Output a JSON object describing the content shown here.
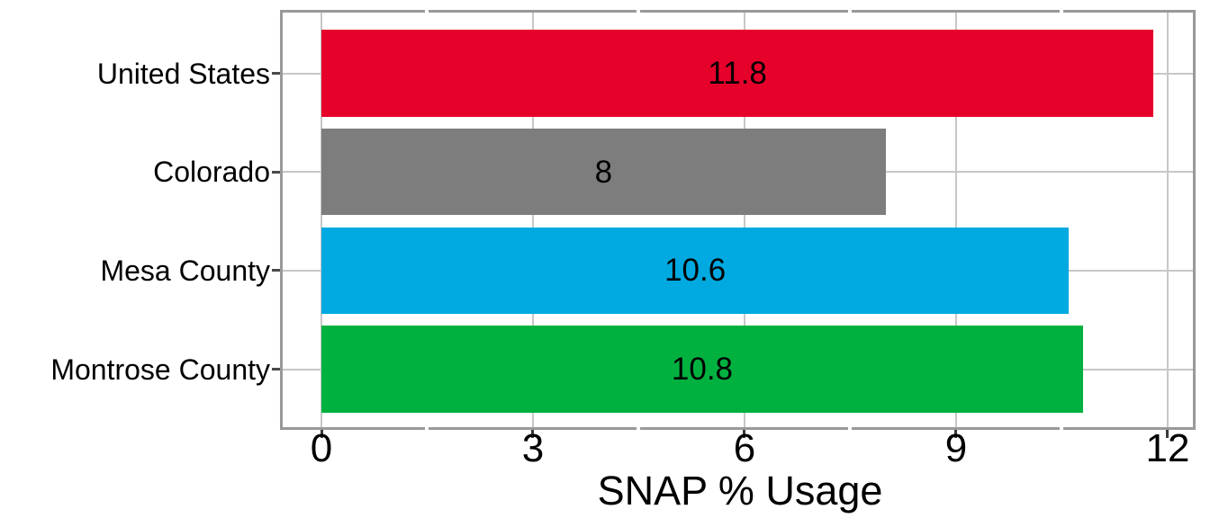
{
  "chart_data": {
    "type": "bar",
    "orientation": "horizontal",
    "title": "",
    "xlabel": "SNAP % Usage",
    "ylabel": "",
    "categories": [
      "United States",
      "Colorado",
      "Mesa County",
      "Montrose County"
    ],
    "values": [
      11.8,
      8,
      10.6,
      10.8
    ],
    "value_labels": [
      "11.8",
      "8",
      "10.6",
      "10.8"
    ],
    "bar_colors": [
      "#e6012b",
      "#7d7d7d",
      "#00a9e0",
      "#00b140"
    ],
    "x_major_ticks": [
      0,
      3,
      6,
      9,
      12
    ],
    "x_tick_labels": [
      "0",
      "3",
      "6",
      "9",
      "12"
    ],
    "x_minor_ticks": [
      1.5,
      4.5,
      7.5,
      10.5
    ],
    "xlim": [
      -0.57,
      12.4
    ],
    "grid": {
      "vertical_major": true,
      "horizontal_category_lines": true,
      "minor_lines": false
    },
    "legend": null
  },
  "colors": {
    "background": "#ffffff",
    "panel_border": "#999999",
    "gridline": "#c7c7c7",
    "axis_tick": "#3a3a3a",
    "text": "#000000"
  }
}
